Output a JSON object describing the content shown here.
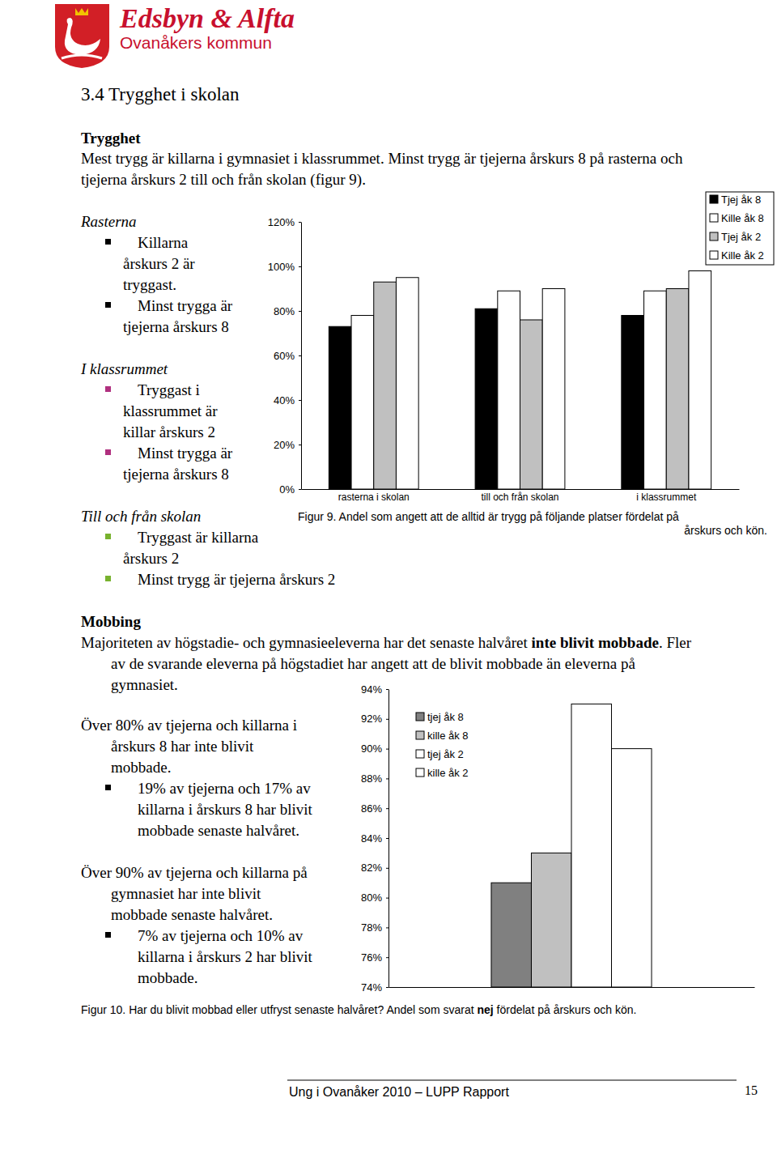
{
  "header": {
    "title": "Edsbyn & Alfta",
    "subtitle": "Ovanåkers kommun"
  },
  "section_title": "3.4 Trygghet i skolan",
  "trygghet": {
    "heading": "Trygghet",
    "paragraph": [
      "Mest trygg är killarna i gymnasiet i klassrummet. Minst trygg är tjejerna årskurs 8 på rasterna och",
      "tjejerna årskurs 2 till och från skolan (figur 9)."
    ]
  },
  "notes_fig9": [
    {
      "heading": "Rasterna",
      "bullets": [
        [
          "Killarna",
          "årskurs 2 är",
          "tryggast."
        ],
        [
          "Minst trygga är",
          "tjejerna årskurs 8"
        ]
      ]
    },
    {
      "heading": "I klassrummet",
      "bullets": [
        [
          "Tryggast i",
          "klassrummet är",
          "killar årskurs 2"
        ],
        [
          "Minst trygga är",
          "tjejerna årskurs 8"
        ]
      ]
    },
    {
      "heading": "Till och från skolan",
      "bullets": [
        [
          "Tryggast är killarna",
          "årskurs 2"
        ],
        [
          "Minst trygg är tjejerna årskurs 2"
        ]
      ]
    }
  ],
  "mobbing": {
    "heading": "Mobbing",
    "paragraph": [
      [
        {
          "text": "Majoriteten av högstadie- och gymnasieeleverna har det senaste halvåret "
        },
        {
          "text": "inte blivit mobbade",
          "bold": true
        },
        {
          "text": ". Fler"
        }
      ],
      [
        {
          "text": "av de svarande eleverna på högstadiet har angett att de blivit mobbade än eleverna på"
        }
      ],
      [
        {
          "text": "gymnasiet."
        }
      ]
    ]
  },
  "notes_fig10": [
    {
      "lines": [
        "Över 80% av tjejerna och killarna i",
        "årskurs 8 har inte blivit",
        "mobbade."
      ],
      "bullets": [
        [
          "19% av tjejerna och 17% av",
          "killarna i årskurs 8 har blivit",
          "mobbade senaste halvåret."
        ]
      ]
    },
    {
      "lines": [
        "Över 90% av tjejerna och killarna på",
        "gymnasiet har inte blivit",
        "mobbade senaste halvåret."
      ],
      "bullets": [
        [
          "7% av tjejerna och 10% av",
          "killarna i årskurs 2 har blivit",
          "mobbade."
        ]
      ]
    }
  ],
  "chart_data": [
    {
      "type": "bar",
      "categories": [
        "rasterna i skolan",
        "till och från skolan",
        "i klassrummet"
      ],
      "series": [
        {
          "name": "Tjej åk 8",
          "color": "#000000",
          "values": [
            73,
            81,
            78
          ]
        },
        {
          "name": "Kille åk 8",
          "color": "#ffffff",
          "values": [
            78,
            89,
            89
          ]
        },
        {
          "name": "Tjej åk 2",
          "color": "#c0c0c0",
          "values": [
            93,
            76,
            90
          ]
        },
        {
          "name": "Kille åk 2",
          "color": "#ffffff",
          "values": [
            95,
            90,
            98
          ]
        }
      ],
      "ylim": [
        0,
        120
      ],
      "yticks": [
        {
          "value": 0,
          "label": "0%"
        },
        {
          "value": 20,
          "label": "20%"
        },
        {
          "value": 40,
          "label": "40%"
        },
        {
          "value": 60,
          "label": "60%"
        },
        {
          "value": 80,
          "label": "80%"
        },
        {
          "value": 100,
          "label": "100%"
        },
        {
          "value": 120,
          "label": "120%"
        }
      ],
      "legend": "upper right",
      "caption": [
        "Figur 9. Andel som angett att de alltid är trygg på följande platser fördelat på",
        "årskurs och kön."
      ]
    },
    {
      "type": "bar",
      "categories": [
        null
      ],
      "series": [
        {
          "name": "tjej åk 8",
          "color": "#808080",
          "values": [
            81
          ]
        },
        {
          "name": "kille åk 8",
          "color": "#c0c0c0",
          "values": [
            83
          ]
        },
        {
          "name": "tjej åk 2",
          "color": "#ffffff",
          "values": [
            93
          ]
        },
        {
          "name": "kille åk 2",
          "color": "#ffffff",
          "values": [
            90
          ]
        }
      ],
      "ylim": [
        74,
        94
      ],
      "yticks": [
        {
          "value": 74,
          "label": "74%"
        },
        {
          "value": 76,
          "label": "76%"
        },
        {
          "value": 78,
          "label": "78%"
        },
        {
          "value": 80,
          "label": "80%"
        },
        {
          "value": 82,
          "label": "82%"
        },
        {
          "value": 84,
          "label": "84%"
        },
        {
          "value": 86,
          "label": "86%"
        },
        {
          "value": 88,
          "label": "88%"
        },
        {
          "value": 90,
          "label": "90%"
        },
        {
          "value": 92,
          "label": "92%"
        },
        {
          "value": 94,
          "label": "94%"
        }
      ],
      "legend": "upper left",
      "caption": [
        {
          "text": "Figur 10. Har du blivit mobbad eller utfryst senaste halvåret? Andel som svarat "
        },
        {
          "text": "nej",
          "bold": true
        },
        {
          "text": " fördelat på årskurs och kön."
        }
      ]
    }
  ],
  "footer": {
    "text": "Ung i Ovanåker 2010 – LUPP Rapport",
    "page": "15"
  }
}
